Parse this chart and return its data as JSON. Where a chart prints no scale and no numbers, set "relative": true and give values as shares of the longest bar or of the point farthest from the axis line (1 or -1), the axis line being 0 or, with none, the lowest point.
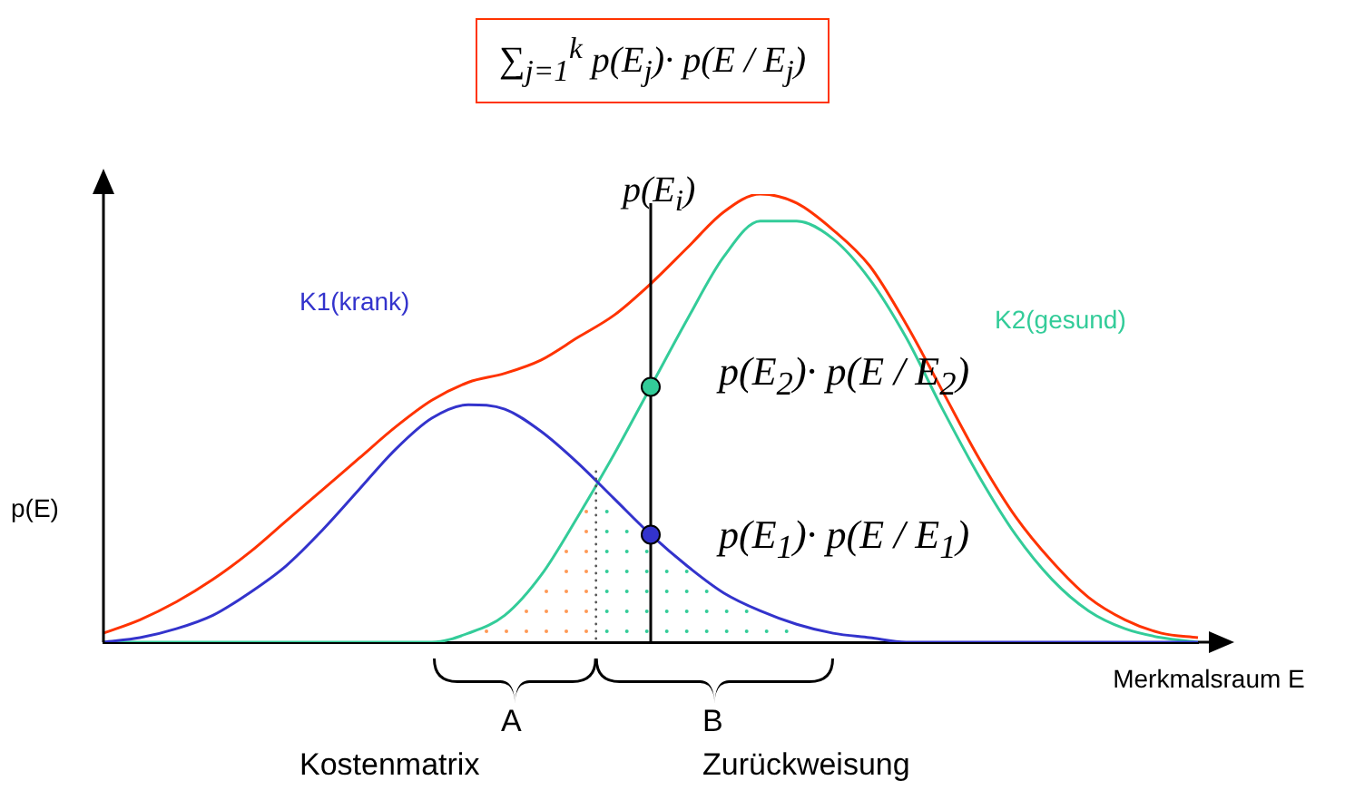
{
  "chart_data": {
    "type": "line",
    "relative": true,
    "legend": false,
    "tick_labels": false,
    "marker": "none",
    "xlabel": "Merkmalsraum E",
    "ylabel": "p(E)",
    "categories": [
      null,
      null,
      null,
      null,
      null,
      null,
      null,
      null,
      null,
      null,
      null,
      null,
      null,
      null,
      null,
      null,
      null,
      null,
      null,
      null,
      null,
      null,
      null,
      null,
      null,
      null,
      null,
      null,
      null,
      null,
      null
    ],
    "series": [
      {
        "color": "#ff3300",
        "values": [
          0.02,
          0.05,
          0.09,
          0.14,
          0.2,
          0.27,
          0.34,
          0.41,
          0.48,
          0.54,
          0.58,
          0.6,
          0.63,
          0.68,
          0.73,
          0.8,
          0.88,
          0.96,
          1.0,
          0.98,
          0.92,
          0.84,
          0.71,
          0.56,
          0.41,
          0.28,
          0.18,
          0.1,
          0.05,
          0.02,
          0.01
        ]
      },
      {
        "name": "K1(krank)",
        "color": "#3333cc",
        "values": [
          0,
          0.01,
          0.03,
          0.06,
          0.11,
          0.17,
          0.25,
          0.34,
          0.43,
          0.5,
          0.53,
          0.52,
          0.47,
          0.4,
          0.32,
          0.24,
          0.17,
          0.11,
          0.07,
          0.04,
          0.02,
          0.01,
          0,
          0,
          0,
          0,
          0,
          0,
          0,
          0,
          0
        ]
      },
      {
        "name": "K2(gesund)",
        "color": "#33cc99",
        "values": [
          0,
          0,
          0,
          0,
          0,
          0,
          0,
          0,
          0,
          0,
          0.02,
          0.06,
          0.15,
          0.28,
          0.42,
          0.57,
          0.72,
          0.86,
          0.94,
          0.94,
          0.9,
          0.81,
          0.68,
          0.52,
          0.37,
          0.24,
          0.14,
          0.07,
          0.03,
          0.01,
          0
        ]
      }
    ],
    "annotations": [
      "∑$_{j=1}$$^{k}$ p(E$_{j}$)· p(E / E$_{j}$)",
      "p(E$_{i}$)",
      "p(E$_{2}$)· p(E / E$_{2}$)",
      "p(E$_{1}$)· p(E / E$_{1}$)",
      "A",
      "Kostenmatrix",
      "B",
      "Zurückweisung"
    ]
  }
}
